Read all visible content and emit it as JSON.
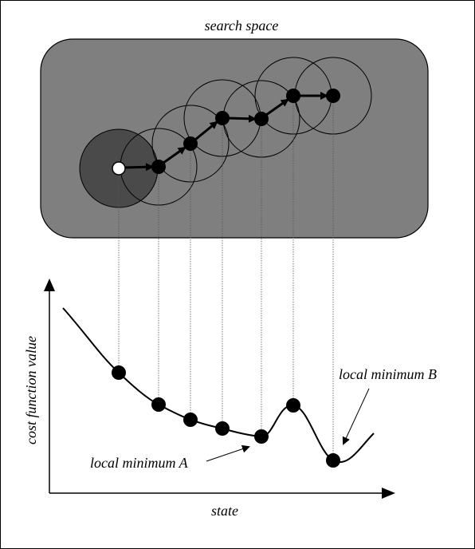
{
  "labels": {
    "title": "search space",
    "y_axis": "cost function value",
    "x_axis": "state",
    "minimum_a": "local minimum A",
    "minimum_b": "local minimum B"
  },
  "colors": {
    "frame_border": "#000000",
    "search_space_fill": "#7f7f7f",
    "start_region_fill": "#4a4a4a",
    "node_fill": "#000000",
    "start_node_fill": "#ffffff",
    "line_color": "#000000",
    "guide_line_color": "#555555"
  },
  "path_steps": 7,
  "icons": {
    "arrow": "arrowhead-icon",
    "node": "filled-circle-icon",
    "start": "hollow-circle-icon"
  }
}
